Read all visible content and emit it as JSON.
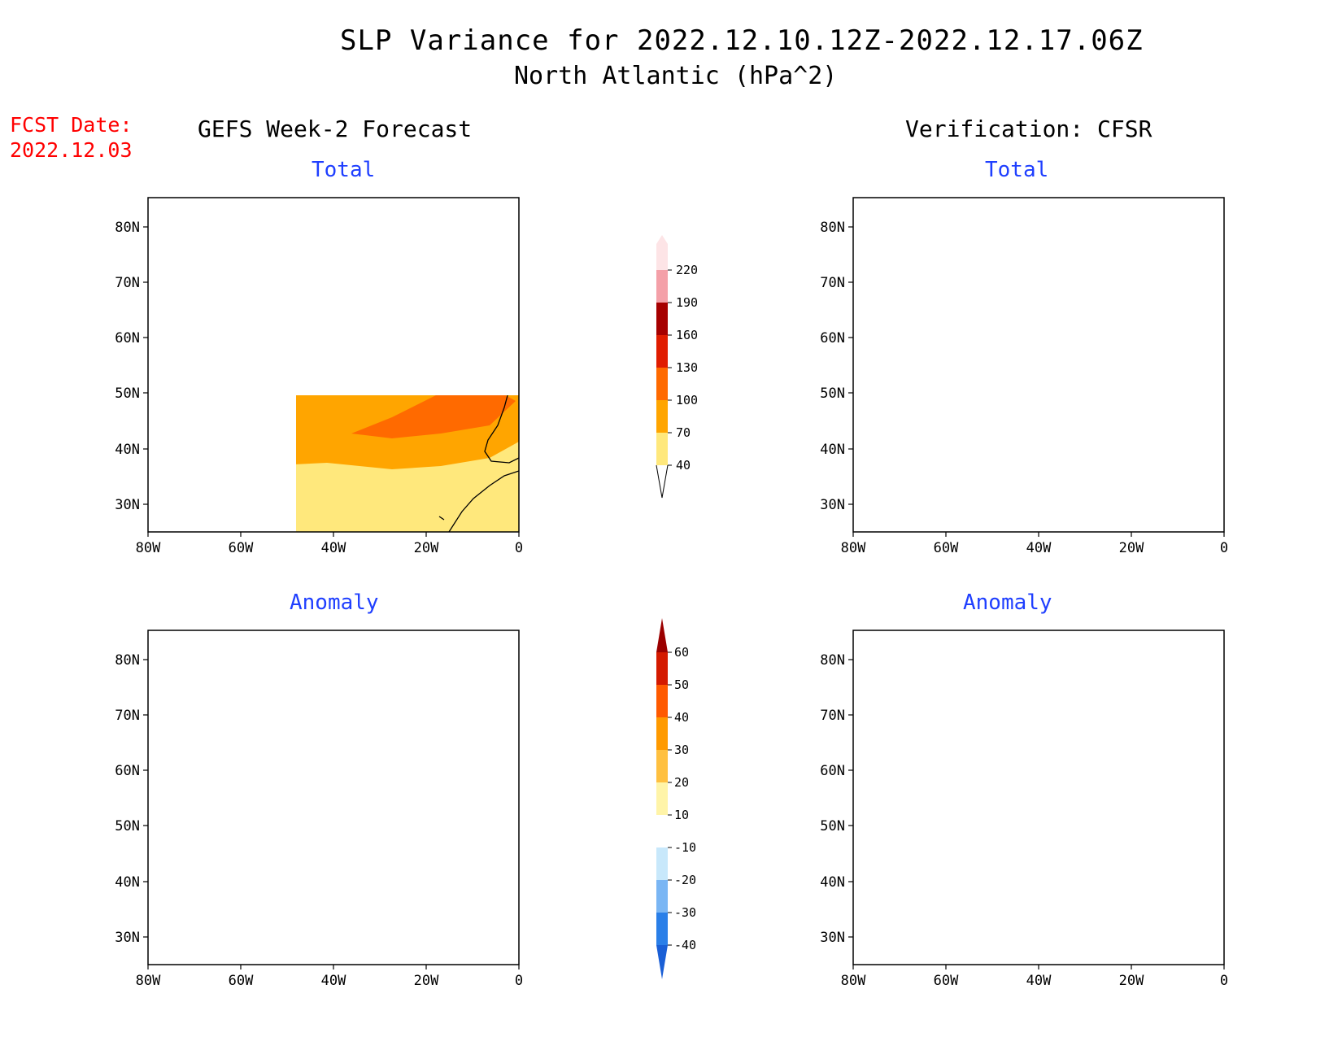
{
  "title": "SLP Variance for 2022.12.10.12Z-2022.12.17.06Z",
  "subtitle": "North Atlantic (hPa^2)",
  "fcst_date_label": "FCST Date:",
  "fcst_date_value": "2022.12.03",
  "left_header": "GEFS Week-2 Forecast",
  "right_header": "Verification: CFSR",
  "panel_titles": {
    "total_left": "Total",
    "total_right": "Total",
    "anom_left": "Anomaly",
    "anom_right": "Anomaly"
  },
  "lat_labels": [
    "80N",
    "70N",
    "60N",
    "50N",
    "40N",
    "30N"
  ],
  "lon_labels": [
    "80W",
    "60W",
    "40W",
    "20W",
    "0"
  ],
  "total_colorbar": {
    "labels": [
      "40",
      "70",
      "100",
      "130",
      "160",
      "190",
      "220"
    ],
    "colors": [
      "#ffe87c",
      "#ffa500",
      "#ff6a00",
      "#e01c00",
      "#a60000",
      "#f4a0a8",
      "#fde4e6"
    ]
  },
  "anomaly_colorbar": {
    "labels": [
      "-40",
      "-30",
      "-20",
      "-10",
      "10",
      "20",
      "30",
      "40",
      "50",
      "60"
    ],
    "colors": [
      "#1a5fd6",
      "#2a7fe8",
      "#7ab6f4",
      "#c8e8fb",
      "#ffffff",
      "#fff4a8",
      "#ffc040",
      "#ff9a00",
      "#ff5a00",
      "#d41a00",
      "#9b0000"
    ]
  }
}
